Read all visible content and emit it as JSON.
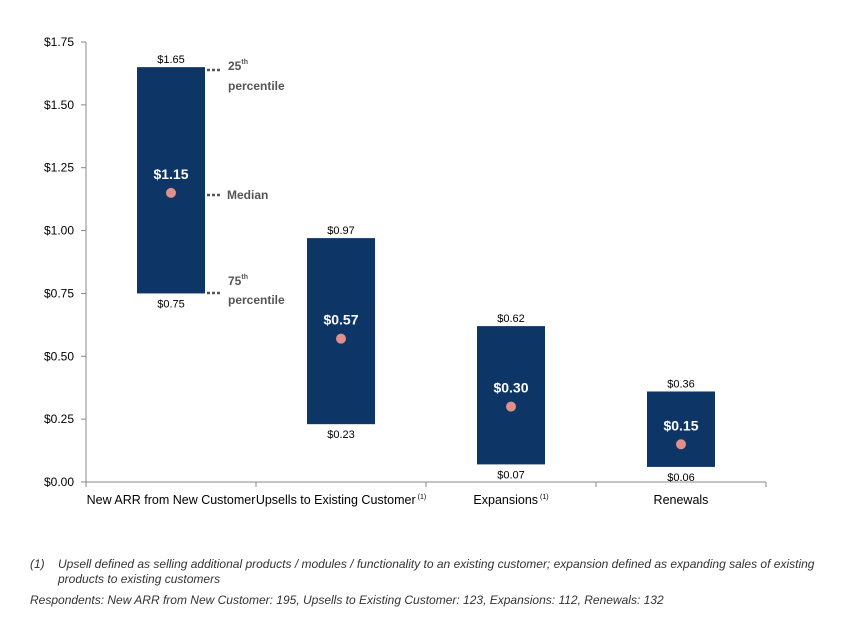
{
  "chart_data": {
    "type": "floating-bar-range",
    "ylim": [
      0,
      1.75
    ],
    "y_ticks": [
      "$0.00",
      "$0.25",
      "$0.50",
      "$0.75",
      "$1.00",
      "$1.25",
      "$1.50",
      "$1.75"
    ],
    "y_tick_values": [
      0,
      0.25,
      0.5,
      0.75,
      1.0,
      1.25,
      1.5,
      1.75
    ],
    "grid": false,
    "bar_color": "#0d3565",
    "median_marker_color": "#e0908a",
    "categories": [
      {
        "label": "New ARR from New Customer",
        "sup": "",
        "high": 1.65,
        "low": 0.75,
        "median": 1.15,
        "high_label": "$1.65",
        "low_label": "$0.75",
        "median_label": "$1.15"
      },
      {
        "label": "Upsells to Existing Customer",
        "sup": "(1)",
        "high": 0.97,
        "low": 0.23,
        "median": 0.57,
        "high_label": "$0.97",
        "low_label": "$0.23",
        "median_label": "$0.57"
      },
      {
        "label": "Expansions",
        "sup": "(1)",
        "high": 0.62,
        "low": 0.07,
        "median": 0.3,
        "high_label": "$0.62",
        "low_label": "$0.07",
        "median_label": "$0.30"
      },
      {
        "label": "Renewals",
        "sup": "",
        "high": 0.36,
        "low": 0.06,
        "median": 0.15,
        "high_label": "$0.36",
        "low_label": "$0.06",
        "median_label": "$0.15"
      }
    ],
    "annotations": {
      "top_num": "25",
      "top_sup": "th",
      "top_word": "percentile",
      "median": "Median",
      "bottom_num": "75",
      "bottom_sup": "th",
      "bottom_word": "percentile"
    }
  },
  "footnotes": {
    "note1_marker": "(1)",
    "note1_text": "Upsell defined as selling additional products / modules / functionality to an existing customer; expansion defined as expanding sales of existing products to existing customers",
    "respondents": "Respondents: New ARR from New Customer: 195, Upsells to Existing Customer: 123, Expansions: 112, Renewals: 132"
  }
}
